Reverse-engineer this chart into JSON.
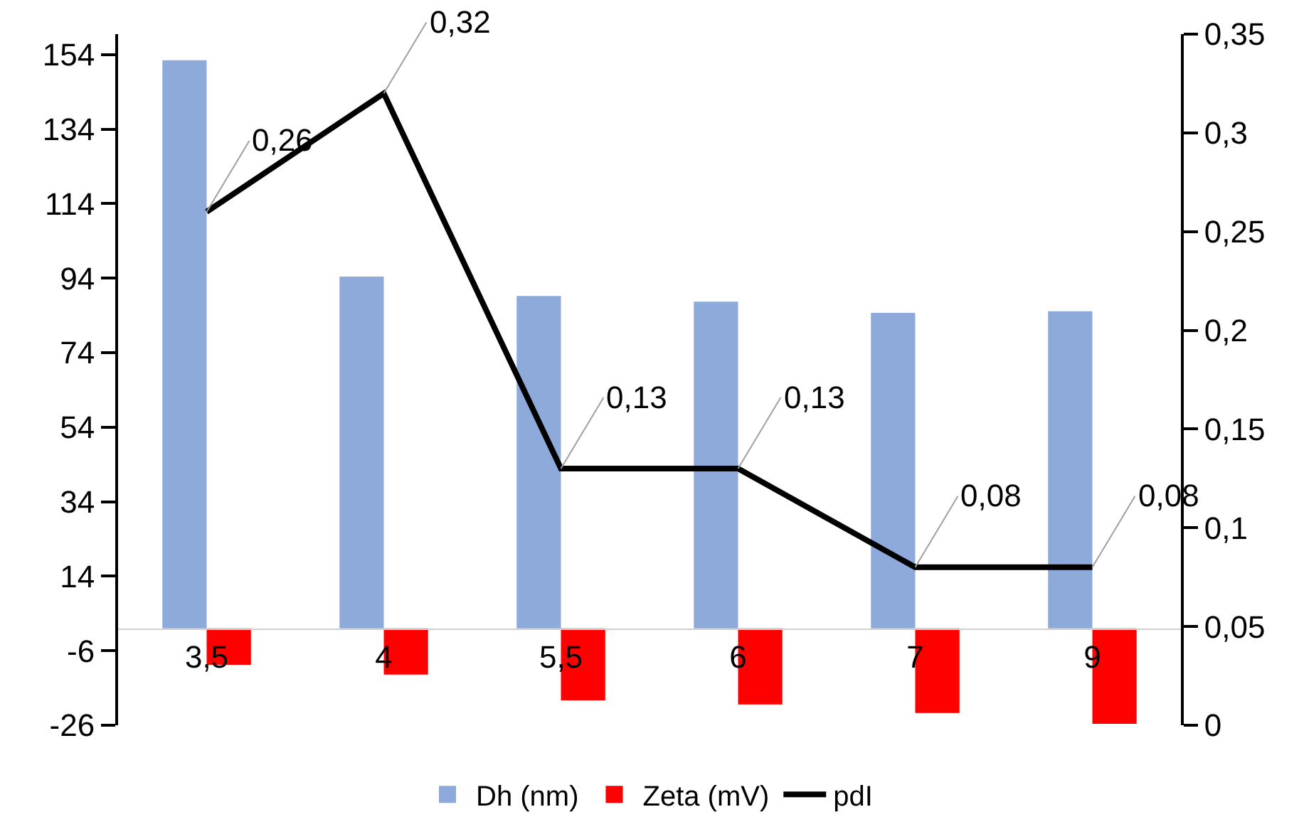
{
  "chart_data": {
    "type": "bar",
    "categories": [
      "3,5",
      "4",
      "5,5",
      "6",
      "7",
      "9"
    ],
    "series": [
      {
        "name": "Dh (nm)",
        "color": "#8eaadb",
        "values": [
          152.5,
          94.4,
          89.2,
          87.7,
          84.7,
          85.1
        ]
      },
      {
        "name": "Zeta (mV)",
        "color": "#ff0000",
        "values": [
          -9.8,
          -12.4,
          -19.3,
          -20.4,
          -22.7,
          -25.6
        ]
      },
      {
        "name": "pdI",
        "type": "line",
        "axis": "y2",
        "color": "#000000",
        "values": [
          0.26,
          0.32,
          0.13,
          0.13,
          0.08,
          0.08
        ],
        "value_labels": [
          "0,26",
          "0,32",
          "0,13",
          "0,13",
          "0,08",
          "0,08"
        ]
      }
    ],
    "ylim": [
      -26,
      159.5
    ],
    "yticks": [
      -26,
      -6,
      14,
      34,
      54,
      74,
      94,
      114,
      134,
      154
    ],
    "y2lim": [
      0,
      0.35
    ],
    "y2ticks": [
      0,
      {
        "value": 0.05,
        "label": "0,05"
      },
      {
        "value": 0.1,
        "label": "0,1"
      },
      {
        "value": 0.15,
        "label": "0,15"
      },
      {
        "value": 0.2,
        "label": "0,2"
      },
      {
        "value": 0.25,
        "label": "0,25"
      },
      {
        "value": 0.3,
        "label": "0,3"
      },
      {
        "value": 0.35,
        "label": "0,35"
      }
    ],
    "grid": false,
    "legend": "bottom",
    "marker": "none",
    "line_style": "solid"
  }
}
